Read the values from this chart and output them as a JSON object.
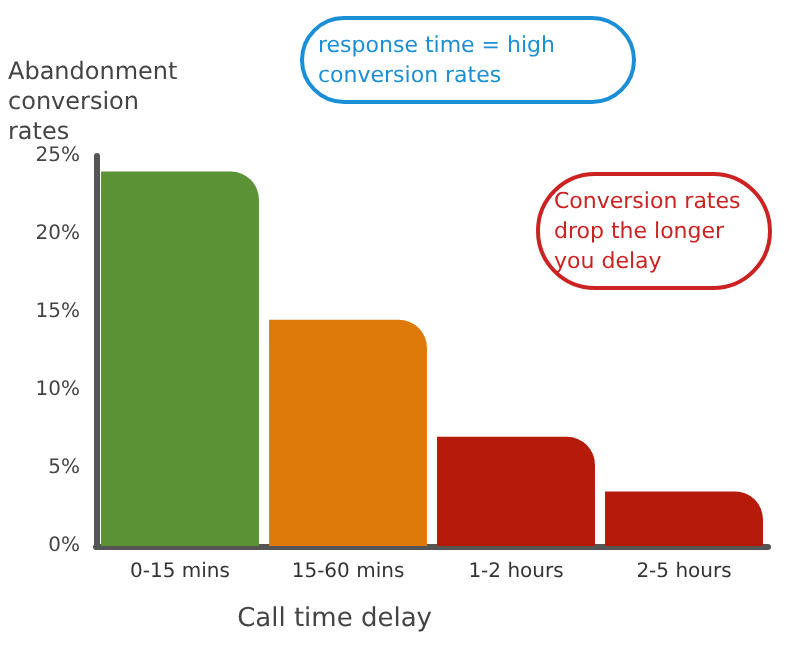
{
  "chart_data": {
    "type": "bar",
    "xlabel": "Call time delay",
    "ylabel": "Abandonment conversion rates",
    "categories": [
      "0-15 mins",
      "15-60 mins",
      "1-2 hours",
      "2-5 hours"
    ],
    "values": [
      24,
      14.5,
      7,
      3.5
    ],
    "colors": [
      "#5a9235",
      "#dd7a0a",
      "#b51a0a",
      "#b51a0a"
    ],
    "ylim": [
      0,
      25
    ],
    "yticks": [
      {
        "value": 0,
        "label": "0%"
      },
      {
        "value": 5,
        "label": "5%"
      },
      {
        "value": 10,
        "label": "10%"
      },
      {
        "value": 15,
        "label": "15%"
      },
      {
        "value": 20,
        "label": "20%"
      },
      {
        "value": 25,
        "label": "25%"
      }
    ],
    "annotations": [
      "response time = high conversion rates",
      "Conversion rates drop the longer you delay"
    ],
    "grid": false
  }
}
